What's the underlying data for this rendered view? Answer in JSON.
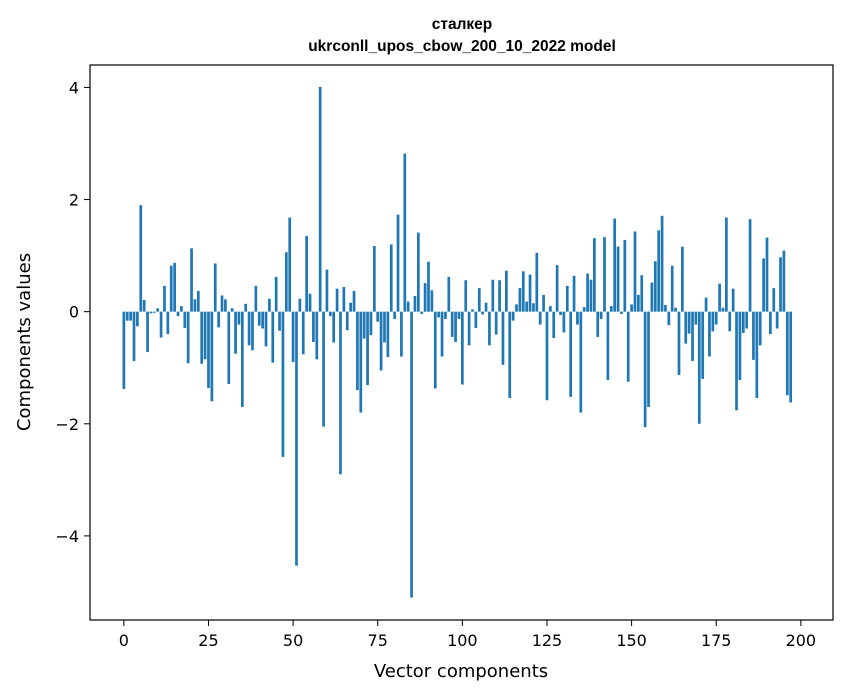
{
  "chart_data": {
    "type": "bar",
    "title": "сталкер",
    "subtitle": "ukrconll_upos_cbow_200_10_2022 model",
    "xlabel": "Vector components",
    "ylabel": "Components values",
    "xlim": [
      -10,
      209.5
    ],
    "ylim": [
      -5.5,
      4.4
    ],
    "xticks": [
      0,
      25,
      50,
      75,
      100,
      125,
      150,
      175,
      200
    ],
    "yticks": [
      -4,
      -2,
      0,
      2,
      4
    ],
    "ytick_labels": [
      "−4",
      "−2",
      "0",
      "2",
      "4"
    ],
    "bar_color": "#1f77b4",
    "values": [
      -1.38,
      -0.16,
      -0.16,
      -0.88,
      -0.26,
      1.9,
      0.21,
      -0.72,
      -0.03,
      -0.02,
      0.06,
      -0.46,
      0.46,
      -0.4,
      0.82,
      0.87,
      -0.08,
      0.1,
      -0.29,
      -0.92,
      1.13,
      0.22,
      0.37,
      -0.93,
      -0.85,
      -1.36,
      -1.6,
      0.86,
      -0.28,
      0.29,
      0.22,
      -1.29,
      0.06,
      -0.75,
      -0.23,
      -1.7,
      0.14,
      -0.6,
      -0.69,
      0.46,
      -0.25,
      -0.3,
      -0.62,
      0.23,
      -0.91,
      0.62,
      -0.34,
      -2.59,
      1.06,
      1.68,
      -0.9,
      -4.53,
      0.23,
      -0.76,
      1.35,
      0.32,
      -0.54,
      -0.85,
      4.01,
      -2.05,
      0.75,
      -0.08,
      -0.55,
      0.41,
      -2.9,
      0.44,
      -0.33,
      0.16,
      0.37,
      -1.4,
      -1.8,
      -0.48,
      -1.31,
      -0.42,
      1.17,
      -0.18,
      -1.05,
      -0.55,
      -0.81,
      1.2,
      -0.13,
      1.73,
      -0.8,
      2.82,
      0.18,
      -5.1,
      0.28,
      1.41,
      -0.04,
      0.51,
      0.89,
      0.38,
      -1.37,
      -0.1,
      -0.8,
      -0.13,
      0.62,
      -0.45,
      -0.54,
      -0.13,
      -1.3,
      0.56,
      -0.6,
      0.04,
      -0.29,
      0.42,
      -0.05,
      0.16,
      -0.6,
      0.57,
      -0.41,
      0.56,
      -0.95,
      0.73,
      -1.54,
      -0.16,
      0.13,
      0.42,
      0.72,
      0.18,
      0.66,
      0.15,
      1.05,
      -0.23,
      0.3,
      -1.58,
      0.1,
      -0.47,
      0.83,
      -0.06,
      -0.37,
      0.46,
      -1.52,
      0.64,
      -0.23,
      -1.8,
      0.08,
      0.68,
      0.57,
      1.31,
      -0.45,
      -0.13,
      1.33,
      -1.22,
      0.1,
      1.66,
      1.16,
      -0.04,
      1.28,
      -1.25,
      0.13,
      1.43,
      0.3,
      0.65,
      -2.06,
      -1.7,
      0.52,
      0.9,
      1.45,
      1.71,
      0.12,
      -0.24,
      0.82,
      0.07,
      -1.13,
      1.16,
      -0.57,
      -0.39,
      -0.88,
      -0.23,
      -2.0,
      -1.2,
      0.25,
      -0.8,
      -0.35,
      -0.23,
      0.5,
      0.07,
      1.68,
      -0.35,
      0.41,
      -1.76,
      -1.22,
      -0.38,
      -0.3,
      1.65,
      -0.86,
      -1.54,
      -0.6,
      0.95,
      1.32,
      -0.4,
      0.42,
      -0.3,
      0.97,
      1.09,
      -1.49,
      -1.62
    ]
  }
}
